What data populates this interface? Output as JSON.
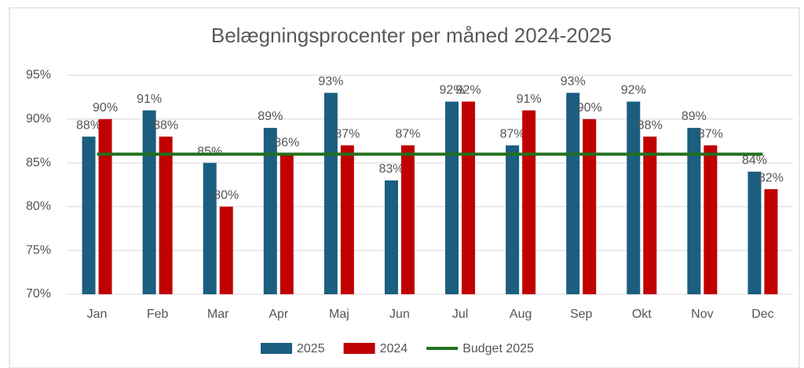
{
  "chart_data": {
    "type": "bar",
    "title": "Belægningsprocenter per måned 2024-2025",
    "categories": [
      "Jan",
      "Feb",
      "Mar",
      "Apr",
      "Maj",
      "Jun",
      "Jul",
      "Aug",
      "Sep",
      "Okt",
      "Nov",
      "Dec"
    ],
    "series": [
      {
        "name": "2025",
        "color": "#1b5e80",
        "type": "bar",
        "values": [
          88,
          91,
          85,
          89,
          93,
          83,
          92,
          87,
          93,
          92,
          89,
          84
        ],
        "value_labels": [
          "88%",
          "91%",
          "85%",
          "89%",
          "93%",
          "83%",
          "92%",
          "87%",
          "93%",
          "92%",
          "89%",
          "84%"
        ]
      },
      {
        "name": "2024",
        "color": "#c00000",
        "type": "bar",
        "values": [
          90,
          88,
          80,
          86,
          87,
          87,
          92,
          91,
          90,
          88,
          87,
          82
        ],
        "value_labels": [
          "90%",
          "88%",
          "80%",
          "86%",
          "87%",
          "87%",
          "92%",
          "91%",
          "90%",
          "88%",
          "87%",
          "82%"
        ]
      },
      {
        "name": "Budget 2025",
        "color": "#22701d",
        "type": "line",
        "values": [
          86,
          86,
          86,
          86,
          86,
          86,
          86,
          86,
          86,
          86,
          86,
          86
        ]
      }
    ],
    "ylim": [
      70,
      95
    ],
    "yticks": [
      {
        "value": 70,
        "label": "70%"
      },
      {
        "value": 75,
        "label": "75%"
      },
      {
        "value": 80,
        "label": "80%"
      },
      {
        "value": 85,
        "label": "85%"
      },
      {
        "value": 90,
        "label": "90%"
      },
      {
        "value": 95,
        "label": "95%"
      }
    ],
    "grid": true,
    "legend": "bottom"
  }
}
